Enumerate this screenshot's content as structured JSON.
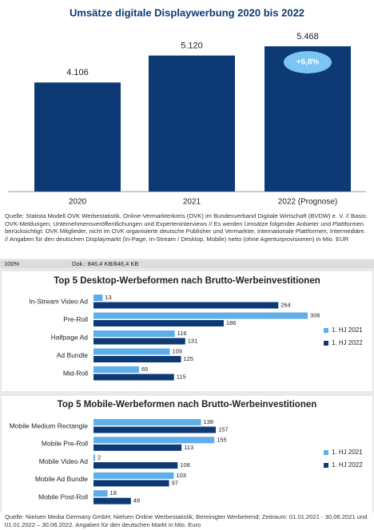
{
  "chart_data": [
    {
      "type": "column",
      "title": "Umsätze digitale Displaywerbung 2020 bis 2022",
      "categories": [
        "2020",
        "2021",
        "2022 (Prognose)"
      ],
      "values": [
        4106,
        5120,
        5468
      ],
      "value_labels": [
        "4.106",
        "5.120",
        "5.468"
      ],
      "color": "#0d3a75",
      "annotation": "+6,8%"
    },
    {
      "type": "hbar",
      "title": "Top 5 Desktop-Werbeformen nach Brutto-Werbeinvestitionen",
      "categories": [
        "In-Stream Video Ad",
        "Pre-Roll",
        "Halfpage Ad",
        "Ad Bundle",
        "Mid-Roll"
      ],
      "series": [
        {
          "name": "1. HJ 2021",
          "color": "#5eaeea",
          "values": [
            13,
            306,
            116,
            109,
            65
          ]
        },
        {
          "name": "1. HJ 2022",
          "color": "#0d3a75",
          "values": [
            264,
            186,
            131,
            125,
            115
          ]
        }
      ],
      "legend": "right"
    },
    {
      "type": "hbar",
      "title": "Top 5 Mobile-Werbeformen nach Brutto-Werbeinvestitionen",
      "categories": [
        "Mobile Medium Rectangle",
        "Mobile Pre-Roll",
        "Mobile Video Ad",
        "Mobile Ad Bundle",
        "Mobile Post-Roll"
      ],
      "series": [
        {
          "name": "1. HJ 2021",
          "color": "#5eaeea",
          "values": [
            138,
            155,
            2,
            103,
            18
          ]
        },
        {
          "name": "1. HJ 2022",
          "color": "#0d3a75",
          "values": [
            157,
            113,
            108,
            97,
            48
          ]
        }
      ],
      "legend": "right"
    }
  ],
  "source_1": "Quelle: Statista Modell OVK Werbestatistik, Online-Vermarkterkreis (OVK) im Bundesverband Digitale Wirtschaft (BVDW) e. V. // Basis: OVK-Meldungen, Unternehmensveröffentlichungen und Experteninterviews // Es werden Umsätze folgender Anbieter und Plattformen berücksichtigt: OVK Mitglieder, nicht im OVK organisierte deutsche Publisher und Vermarkter, internationale Plattformen, Intermediäre. // Angaben für den deutschen Displaymarkt (In-Page, In-Stream / Desktop, Mobile) netto (ohne Agenturprovisionen) in Mio. EUR",
  "status_bar": {
    "zoom": "100%",
    "doc": "Dok.: 846,4 KB/846,4 KB"
  },
  "source_2": "Quelle: Nielsen Media Germany GmbH; Nielsen Online Werbestatistik; Bereinigter Werbetrend; Zeitraum: 01.01.2021 - 30.06.2021 und 01.01.2022 – 30.06.2022. Angaben für den deutschen Markt in Mio. Euro"
}
